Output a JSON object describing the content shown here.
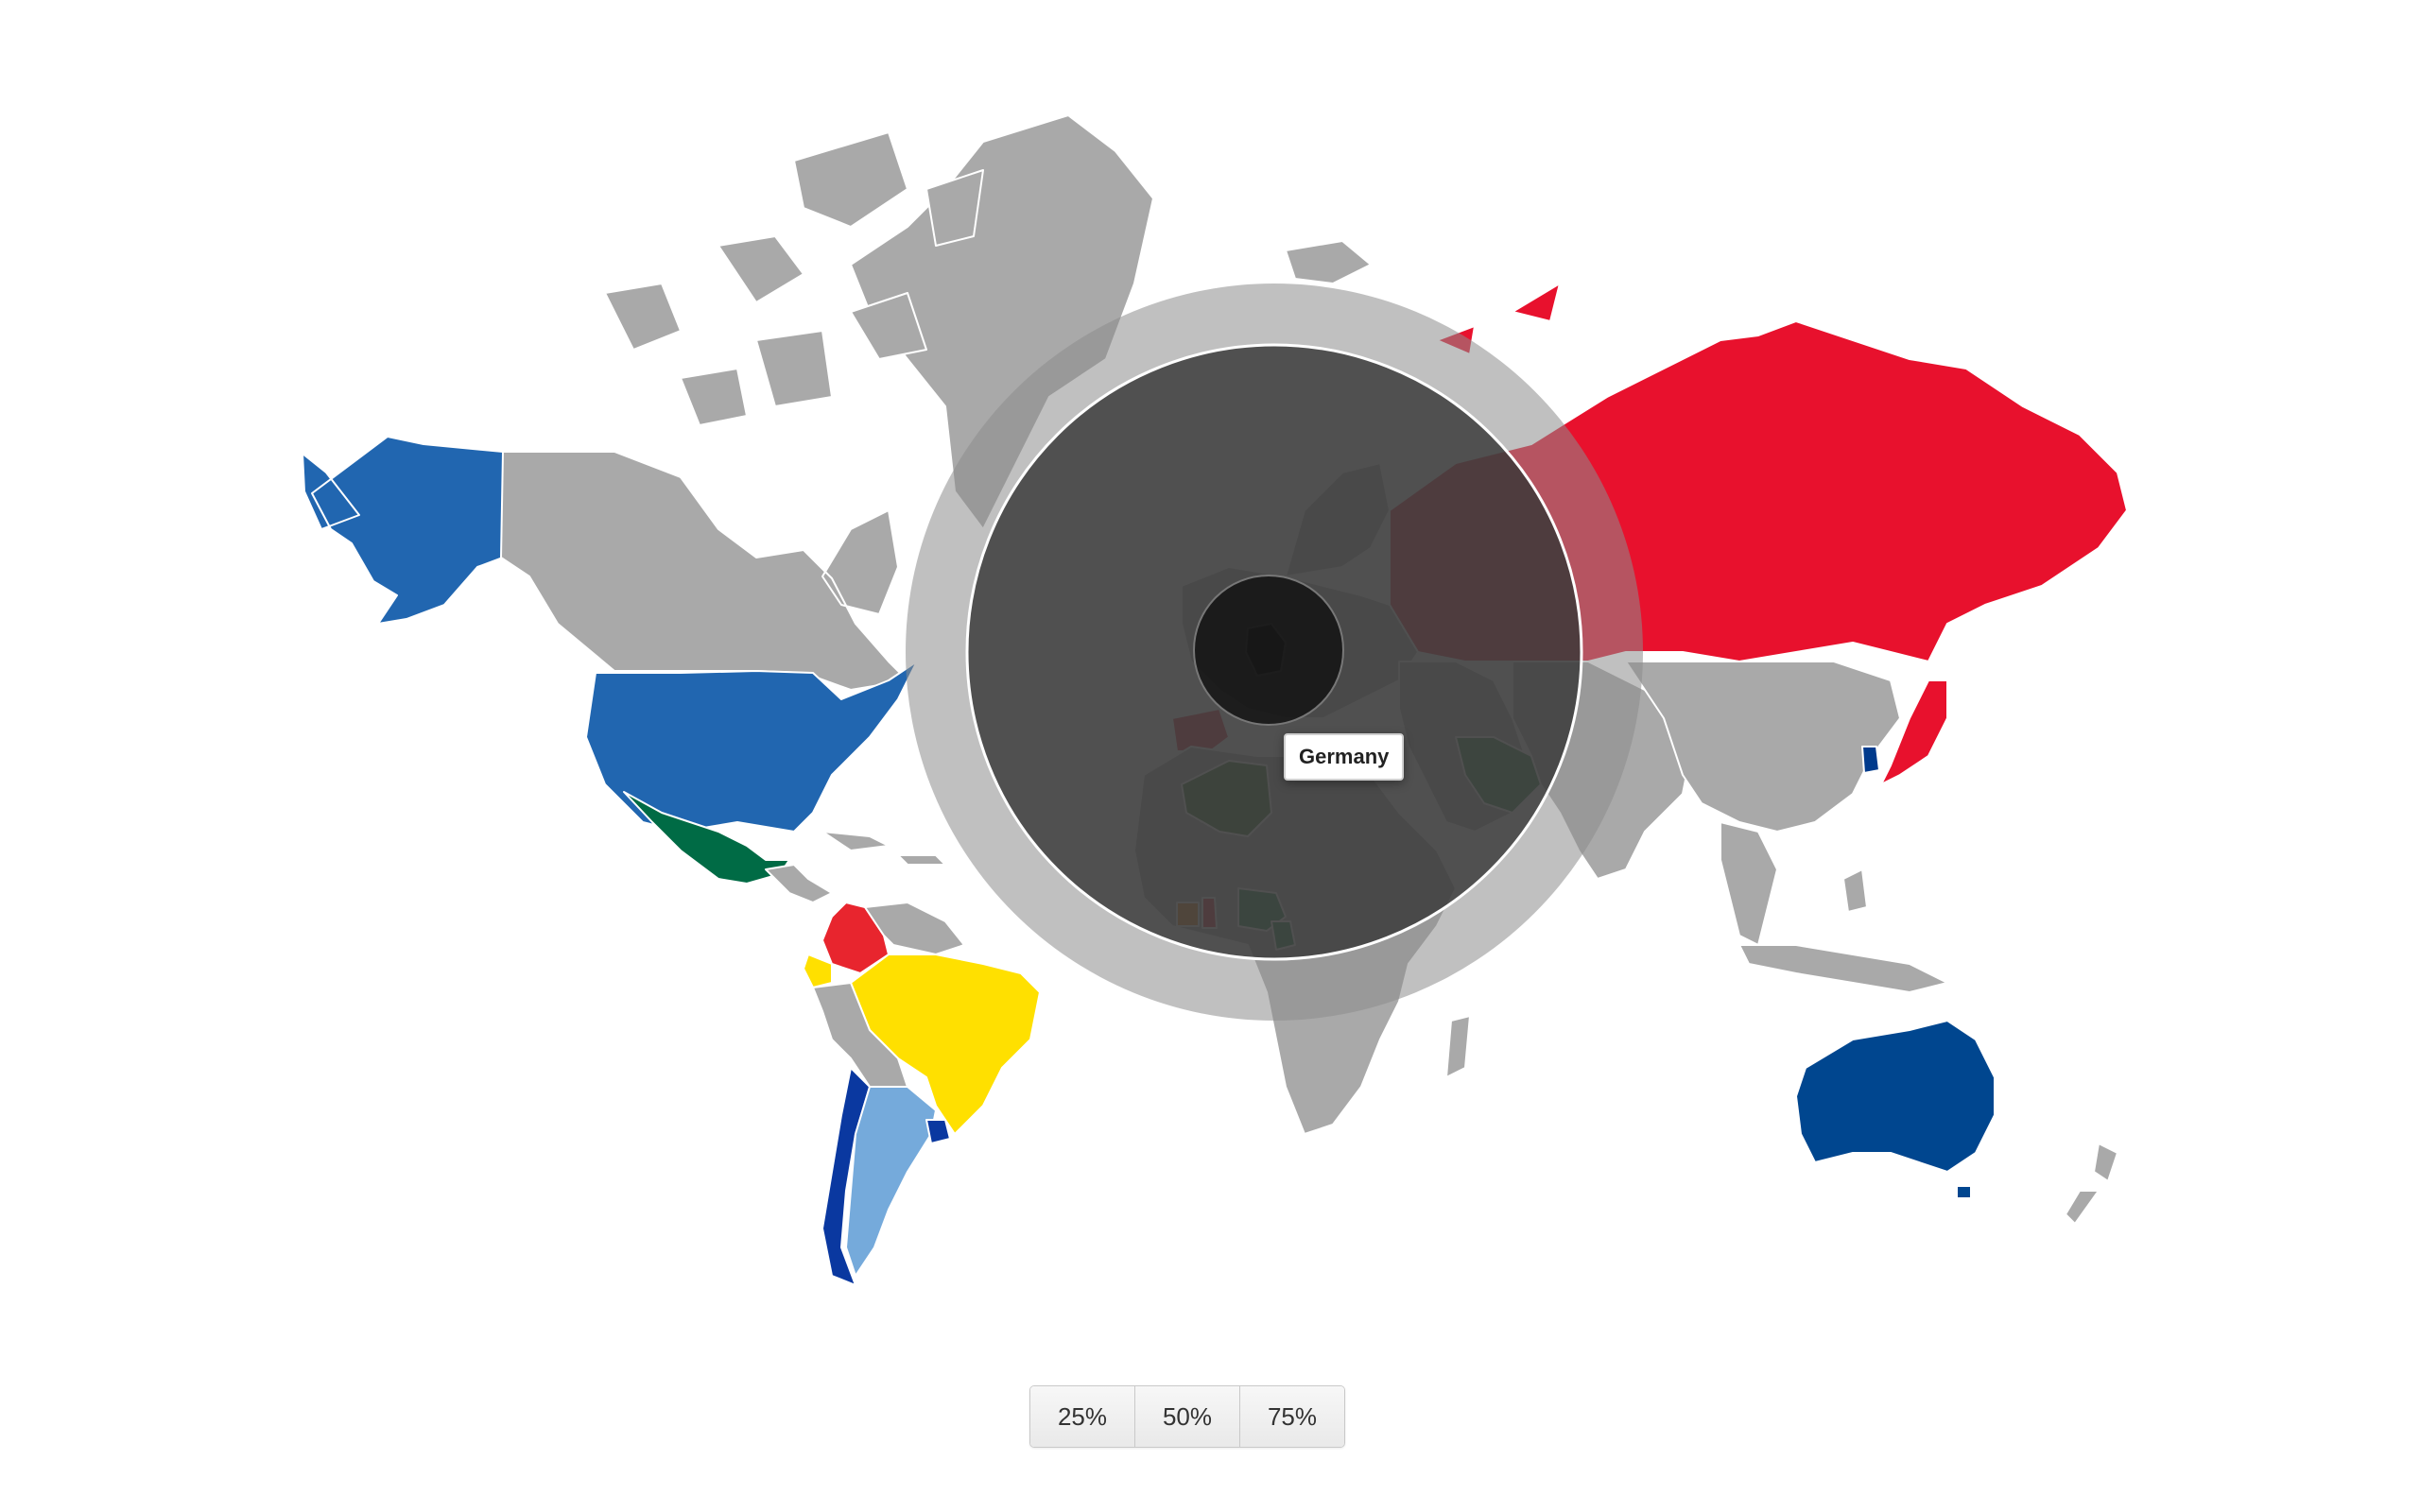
{
  "map": {
    "land_color": "#a9a9a9",
    "border_color": "#ffffff",
    "background": "#ffffff",
    "countries": [
      {
        "name": "Alaska (United States)",
        "color": "#2166b0"
      },
      {
        "name": "Canada",
        "color": "#a9a9a9"
      },
      {
        "name": "Greenland",
        "color": "#a9a9a9"
      },
      {
        "name": "Arctic Archipelago",
        "color": "#a9a9a9"
      },
      {
        "name": "Iceland",
        "color": "#a9a9a9"
      },
      {
        "name": "United States",
        "color": "#2166b0"
      },
      {
        "name": "Mexico",
        "color": "#006b45"
      },
      {
        "name": "Central America",
        "color": "#a9a9a9"
      },
      {
        "name": "Caribbean",
        "color": "#a9a9a9"
      },
      {
        "name": "Colombia",
        "color": "#e8252e"
      },
      {
        "name": "Ecuador",
        "color": "#ffe000"
      },
      {
        "name": "Venezuela & Guianas",
        "color": "#a9a9a9"
      },
      {
        "name": "Brazil",
        "color": "#ffe000"
      },
      {
        "name": "Peru & Bolivia",
        "color": "#a9a9a9"
      },
      {
        "name": "Chile",
        "color": "#0a38a0"
      },
      {
        "name": "Argentina",
        "color": "#75aadb"
      },
      {
        "name": "Uruguay",
        "color": "#0a38a0"
      },
      {
        "name": "Russia",
        "color": "#e8112d"
      },
      {
        "name": "Europe",
        "color": "#a9a9a9"
      },
      {
        "name": "Scandinavia",
        "color": "#a9a9a9"
      },
      {
        "name": "Iberia",
        "color": "#e8112d"
      },
      {
        "name": "Africa",
        "color": "#a9a9a9"
      },
      {
        "name": "Algeria",
        "color": "#1d6b0d"
      },
      {
        "name": "Nigeria",
        "color": "#0a7a3a"
      },
      {
        "name": "Ghana",
        "color": "#e8112d"
      },
      {
        "name": "Ivory Coast",
        "color": "#f77f00"
      },
      {
        "name": "Cameroon",
        "color": "#0a7a3a"
      },
      {
        "name": "Madagascar",
        "color": "#a9a9a9"
      },
      {
        "name": "Middle East",
        "color": "#a9a9a9"
      },
      {
        "name": "Iran",
        "color": "#1f7a3a"
      },
      {
        "name": "Central & South Asia",
        "color": "#a9a9a9"
      },
      {
        "name": "China",
        "color": "#a9a9a9"
      },
      {
        "name": "Southeast Asia",
        "color": "#a9a9a9"
      },
      {
        "name": "Japan",
        "color": "#e8112d"
      },
      {
        "name": "South Korea",
        "color": "#003a8c"
      },
      {
        "name": "Indonesia & Philippines",
        "color": "#a9a9a9"
      },
      {
        "name": "Australia",
        "color": "#00468f"
      },
      {
        "name": "New Zealand",
        "color": "#a9a9a9"
      },
      {
        "name": "Germany",
        "color": "#000000"
      }
    ]
  },
  "lens": {
    "outer_ring_color": "rgba(140,140,140,0.55)",
    "inner_circle_color": "rgba(55,55,55,0.82)",
    "focus_circle_color": "rgba(10,10,10,0.72)",
    "ring_stroke_color": "#ffffff"
  },
  "tooltip": {
    "text": "Germany"
  },
  "zoom": {
    "options": [
      "25%",
      "50%",
      "75%"
    ]
  }
}
